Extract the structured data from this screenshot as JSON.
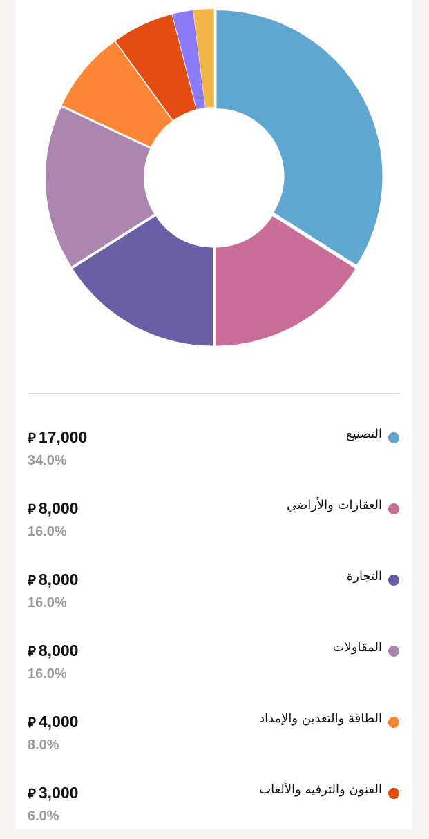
{
  "chart_data": {
    "type": "pie",
    "donut": true,
    "currency_symbol": "⃁",
    "slices": [
      {
        "label": "التصنيع",
        "amount": "17,000",
        "value": 17000,
        "percent": "34.0%",
        "color": "#5fa6d0"
      },
      {
        "label": "العقارات والأراضي",
        "amount": "8,000",
        "value": 8000,
        "percent": "16.0%",
        "color": "#c86d98"
      },
      {
        "label": "التجارة",
        "amount": "8,000",
        "value": 8000,
        "percent": "16.0%",
        "color": "#6a5fa7"
      },
      {
        "label": "المقاولات",
        "amount": "8,000",
        "value": 8000,
        "percent": "16.0%",
        "color": "#ab87b0"
      },
      {
        "label": "الطاقة والتعدين والإمداد",
        "amount": "4,000",
        "value": 4000,
        "percent": "8.0%",
        "color": "#fb8636"
      },
      {
        "label": "الفنون والترفيه والألعاب",
        "amount": "3,000",
        "value": 3000,
        "percent": "6.0%",
        "color": "#e34c13"
      },
      {
        "value": 1000,
        "color": "#8b7bf8"
      },
      {
        "value": 1000,
        "color": "#f1b54a"
      }
    ]
  }
}
